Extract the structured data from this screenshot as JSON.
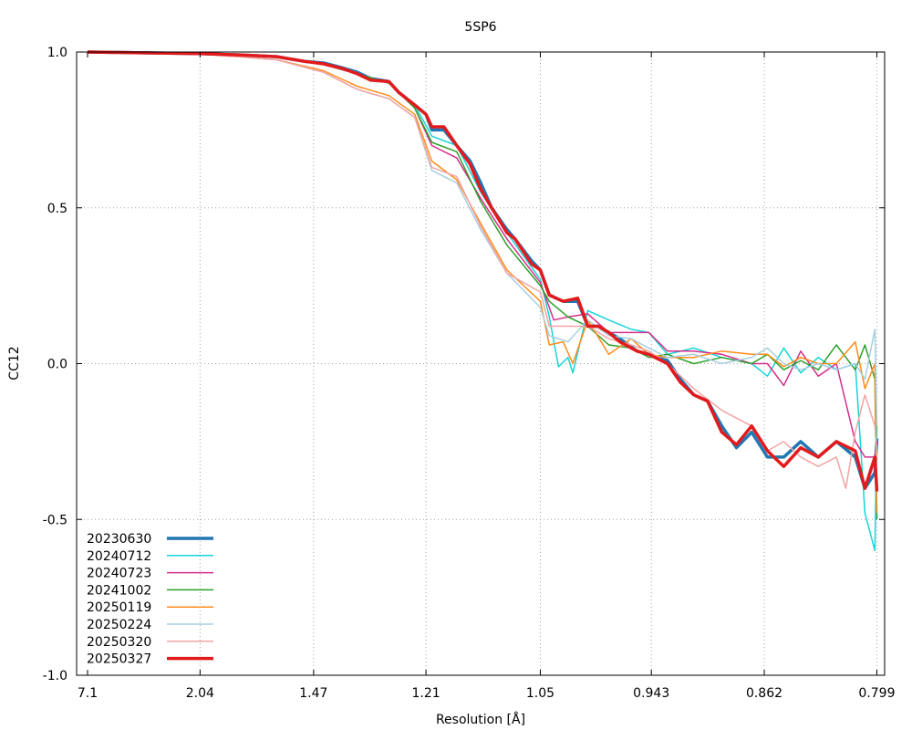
{
  "chart_data": {
    "type": "line",
    "title": "5SP6",
    "xlabel": "Resolution [Å]",
    "ylabel": "CC12",
    "x_scale": "1/d^2",
    "x_ticks": [
      "7.1",
      "2.04",
      "1.47",
      "1.21",
      "1.05",
      "0.943",
      "0.862",
      "0.799"
    ],
    "y_ticks": [
      "1.0",
      "0.5",
      "0.0",
      "-0.5",
      "-1.0"
    ],
    "ylim": [
      -1.0,
      1.0
    ],
    "grid": true,
    "legend_position": "bottom-left",
    "series": [
      {
        "name": "20230630",
        "color": "#1f77b4",
        "width": 3.5,
        "points": [
          [
            7.1,
            1.0
          ],
          [
            3.0,
            0.998
          ],
          [
            2.04,
            0.995
          ],
          [
            1.75,
            0.99
          ],
          [
            1.6,
            0.985
          ],
          [
            1.5,
            0.97
          ],
          [
            1.44,
            0.965
          ],
          [
            1.39,
            0.95
          ],
          [
            1.35,
            0.935
          ],
          [
            1.32,
            0.915
          ],
          [
            1.28,
            0.905
          ],
          [
            1.26,
            0.87
          ],
          [
            1.23,
            0.83
          ],
          [
            1.21,
            0.8
          ],
          [
            1.2,
            0.75
          ],
          [
            1.18,
            0.75
          ],
          [
            1.16,
            0.7
          ],
          [
            1.14,
            0.65
          ],
          [
            1.125,
            0.58
          ],
          [
            1.11,
            0.5
          ],
          [
            1.09,
            0.43
          ],
          [
            1.08,
            0.4
          ],
          [
            1.06,
            0.33
          ],
          [
            1.05,
            0.3
          ],
          [
            1.04,
            0.22
          ],
          [
            1.025,
            0.2
          ],
          [
            1.01,
            0.2
          ],
          [
            1.0,
            0.12
          ],
          [
            0.99,
            0.12
          ],
          [
            0.98,
            0.1
          ],
          [
            0.97,
            0.08
          ],
          [
            0.955,
            0.04
          ],
          [
            0.945,
            0.03
          ],
          [
            0.94,
            0.02
          ],
          [
            0.93,
            0.01
          ],
          [
            0.92,
            -0.05
          ],
          [
            0.91,
            -0.1
          ],
          [
            0.9,
            -0.12
          ],
          [
            0.89,
            -0.2
          ],
          [
            0.88,
            -0.27
          ],
          [
            0.87,
            -0.22
          ],
          [
            0.86,
            -0.3
          ],
          [
            0.85,
            -0.3
          ],
          [
            0.84,
            -0.25
          ],
          [
            0.83,
            -0.3
          ],
          [
            0.82,
            -0.25
          ],
          [
            0.81,
            -0.3
          ],
          [
            0.805,
            -0.4
          ],
          [
            0.8,
            -0.35
          ],
          [
            0.799,
            -0.24
          ]
        ]
      },
      {
        "name": "20240712",
        "color": "#17d4d8",
        "width": 1.5,
        "points": [
          [
            7.1,
            1.0
          ],
          [
            2.04,
            0.995
          ],
          [
            1.6,
            0.985
          ],
          [
            1.44,
            0.96
          ],
          [
            1.35,
            0.93
          ],
          [
            1.28,
            0.9
          ],
          [
            1.23,
            0.83
          ],
          [
            1.2,
            0.73
          ],
          [
            1.16,
            0.7
          ],
          [
            1.125,
            0.55
          ],
          [
            1.09,
            0.42
          ],
          [
            1.05,
            0.27
          ],
          [
            1.04,
            0.15
          ],
          [
            1.03,
            -0.01
          ],
          [
            1.02,
            0.02
          ],
          [
            1.015,
            -0.03
          ],
          [
            1.0,
            0.17
          ],
          [
            0.98,
            0.14
          ],
          [
            0.96,
            0.11
          ],
          [
            0.945,
            0.1
          ],
          [
            0.93,
            0.03
          ],
          [
            0.91,
            0.05
          ],
          [
            0.89,
            0.02
          ],
          [
            0.87,
            0.0
          ],
          [
            0.86,
            -0.04
          ],
          [
            0.85,
            0.05
          ],
          [
            0.84,
            -0.03
          ],
          [
            0.83,
            0.02
          ],
          [
            0.82,
            -0.02
          ],
          [
            0.81,
            0.0
          ],
          [
            0.805,
            -0.48
          ],
          [
            0.8,
            -0.6
          ],
          [
            0.799,
            -0.2
          ]
        ]
      },
      {
        "name": "20240723",
        "color": "#d62c8c",
        "width": 1.5,
        "points": [
          [
            7.1,
            1.0
          ],
          [
            2.04,
            0.995
          ],
          [
            1.6,
            0.985
          ],
          [
            1.44,
            0.96
          ],
          [
            1.35,
            0.93
          ],
          [
            1.28,
            0.9
          ],
          [
            1.23,
            0.82
          ],
          [
            1.2,
            0.7
          ],
          [
            1.16,
            0.66
          ],
          [
            1.125,
            0.53
          ],
          [
            1.09,
            0.4
          ],
          [
            1.05,
            0.26
          ],
          [
            1.035,
            0.14
          ],
          [
            1.02,
            0.15
          ],
          [
            1.0,
            0.16
          ],
          [
            0.98,
            0.1
          ],
          [
            0.96,
            0.1
          ],
          [
            0.945,
            0.1
          ],
          [
            0.93,
            0.04
          ],
          [
            0.91,
            0.04
          ],
          [
            0.89,
            0.03
          ],
          [
            0.87,
            0.0
          ],
          [
            0.86,
            0.0
          ],
          [
            0.85,
            -0.07
          ],
          [
            0.84,
            0.04
          ],
          [
            0.83,
            -0.04
          ],
          [
            0.82,
            0.0
          ],
          [
            0.81,
            -0.25
          ],
          [
            0.805,
            -0.3
          ],
          [
            0.8,
            -0.3
          ],
          [
            0.799,
            -0.25
          ]
        ]
      },
      {
        "name": "20241002",
        "color": "#2ca02c",
        "width": 1.5,
        "points": [
          [
            7.1,
            1.0
          ],
          [
            2.04,
            0.995
          ],
          [
            1.6,
            0.985
          ],
          [
            1.44,
            0.96
          ],
          [
            1.35,
            0.93
          ],
          [
            1.28,
            0.9
          ],
          [
            1.23,
            0.82
          ],
          [
            1.2,
            0.71
          ],
          [
            1.16,
            0.68
          ],
          [
            1.125,
            0.52
          ],
          [
            1.09,
            0.38
          ],
          [
            1.05,
            0.25
          ],
          [
            1.04,
            0.2
          ],
          [
            1.02,
            0.15
          ],
          [
            1.0,
            0.12
          ],
          [
            0.98,
            0.06
          ],
          [
            0.96,
            0.05
          ],
          [
            0.945,
            0.02
          ],
          [
            0.93,
            0.03
          ],
          [
            0.91,
            0.0
          ],
          [
            0.89,
            0.02
          ],
          [
            0.87,
            0.0
          ],
          [
            0.86,
            0.03
          ],
          [
            0.85,
            -0.02
          ],
          [
            0.84,
            0.01
          ],
          [
            0.83,
            -0.02
          ],
          [
            0.82,
            0.06
          ],
          [
            0.81,
            -0.02
          ],
          [
            0.805,
            0.06
          ],
          [
            0.8,
            -0.05
          ],
          [
            0.799,
            -0.5
          ]
        ]
      },
      {
        "name": "20250119",
        "color": "#ff8c1a",
        "width": 1.5,
        "points": [
          [
            7.1,
            1.0
          ],
          [
            2.04,
            0.994
          ],
          [
            1.6,
            0.975
          ],
          [
            1.44,
            0.94
          ],
          [
            1.35,
            0.89
          ],
          [
            1.28,
            0.86
          ],
          [
            1.23,
            0.8
          ],
          [
            1.2,
            0.65
          ],
          [
            1.16,
            0.59
          ],
          [
            1.125,
            0.45
          ],
          [
            1.09,
            0.3
          ],
          [
            1.05,
            0.2
          ],
          [
            1.04,
            0.06
          ],
          [
            1.025,
            0.07
          ],
          [
            1.015,
            0.0
          ],
          [
            1.0,
            0.14
          ],
          [
            0.98,
            0.03
          ],
          [
            0.96,
            0.08
          ],
          [
            0.945,
            0.03
          ],
          [
            0.93,
            0.02
          ],
          [
            0.91,
            0.02
          ],
          [
            0.89,
            0.04
          ],
          [
            0.87,
            0.03
          ],
          [
            0.86,
            0.03
          ],
          [
            0.85,
            -0.01
          ],
          [
            0.84,
            0.02
          ],
          [
            0.83,
            0.0
          ],
          [
            0.82,
            0.0
          ],
          [
            0.81,
            0.07
          ],
          [
            0.805,
            -0.08
          ],
          [
            0.8,
            0.0
          ],
          [
            0.799,
            -0.48
          ]
        ]
      },
      {
        "name": "20250224",
        "color": "#a6cee3",
        "width": 1.5,
        "points": [
          [
            7.1,
            1.0
          ],
          [
            2.04,
            0.994
          ],
          [
            1.6,
            0.975
          ],
          [
            1.44,
            0.935
          ],
          [
            1.35,
            0.88
          ],
          [
            1.28,
            0.85
          ],
          [
            1.23,
            0.79
          ],
          [
            1.2,
            0.62
          ],
          [
            1.16,
            0.58
          ],
          [
            1.125,
            0.43
          ],
          [
            1.09,
            0.29
          ],
          [
            1.05,
            0.18
          ],
          [
            1.04,
            0.09
          ],
          [
            1.02,
            0.07
          ],
          [
            1.0,
            0.14
          ],
          [
            0.98,
            0.09
          ],
          [
            0.96,
            0.08
          ],
          [
            0.945,
            0.05
          ],
          [
            0.93,
            0.02
          ],
          [
            0.91,
            0.03
          ],
          [
            0.89,
            0.0
          ],
          [
            0.87,
            0.02
          ],
          [
            0.86,
            0.05
          ],
          [
            0.85,
            0.0
          ],
          [
            0.84,
            -0.02
          ],
          [
            0.83,
            0.0
          ],
          [
            0.82,
            -0.02
          ],
          [
            0.81,
            0.0
          ],
          [
            0.805,
            -0.05
          ],
          [
            0.8,
            0.11
          ],
          [
            0.799,
            -0.2
          ]
        ]
      },
      {
        "name": "20250320",
        "color": "#f4a3a3",
        "width": 1.5,
        "points": [
          [
            7.1,
            1.0
          ],
          [
            2.04,
            0.994
          ],
          [
            1.6,
            0.975
          ],
          [
            1.44,
            0.935
          ],
          [
            1.35,
            0.88
          ],
          [
            1.28,
            0.85
          ],
          [
            1.23,
            0.79
          ],
          [
            1.2,
            0.63
          ],
          [
            1.16,
            0.6
          ],
          [
            1.125,
            0.44
          ],
          [
            1.09,
            0.29
          ],
          [
            1.05,
            0.23
          ],
          [
            1.04,
            0.12
          ],
          [
            1.02,
            0.12
          ],
          [
            1.0,
            0.12
          ],
          [
            0.98,
            0.08
          ],
          [
            0.96,
            0.06
          ],
          [
            0.945,
            0.04
          ],
          [
            0.93,
            0.0
          ],
          [
            0.91,
            -0.08
          ],
          [
            0.89,
            -0.15
          ],
          [
            0.87,
            -0.2
          ],
          [
            0.86,
            -0.28
          ],
          [
            0.85,
            -0.25
          ],
          [
            0.84,
            -0.3
          ],
          [
            0.83,
            -0.33
          ],
          [
            0.82,
            -0.3
          ],
          [
            0.815,
            -0.4
          ],
          [
            0.81,
            -0.22
          ],
          [
            0.805,
            -0.1
          ],
          [
            0.8,
            -0.2
          ],
          [
            0.799,
            -0.3
          ]
        ]
      },
      {
        "name": "20250327",
        "color": "#e31a1c",
        "width": 3.5,
        "points": [
          [
            7.1,
            1.0
          ],
          [
            3.0,
            0.998
          ],
          [
            2.04,
            0.995
          ],
          [
            1.75,
            0.99
          ],
          [
            1.6,
            0.985
          ],
          [
            1.5,
            0.97
          ],
          [
            1.44,
            0.962
          ],
          [
            1.39,
            0.948
          ],
          [
            1.35,
            0.93
          ],
          [
            1.32,
            0.91
          ],
          [
            1.28,
            0.905
          ],
          [
            1.26,
            0.87
          ],
          [
            1.23,
            0.83
          ],
          [
            1.21,
            0.8
          ],
          [
            1.2,
            0.76
          ],
          [
            1.18,
            0.76
          ],
          [
            1.16,
            0.7
          ],
          [
            1.14,
            0.64
          ],
          [
            1.125,
            0.56
          ],
          [
            1.11,
            0.5
          ],
          [
            1.09,
            0.42
          ],
          [
            1.08,
            0.4
          ],
          [
            1.06,
            0.32
          ],
          [
            1.05,
            0.3
          ],
          [
            1.04,
            0.22
          ],
          [
            1.025,
            0.2
          ],
          [
            1.01,
            0.21
          ],
          [
            1.0,
            0.12
          ],
          [
            0.99,
            0.12
          ],
          [
            0.98,
            0.1
          ],
          [
            0.97,
            0.07
          ],
          [
            0.955,
            0.04
          ],
          [
            0.945,
            0.03
          ],
          [
            0.94,
            0.02
          ],
          [
            0.93,
            0.0
          ],
          [
            0.92,
            -0.06
          ],
          [
            0.91,
            -0.1
          ],
          [
            0.9,
            -0.12
          ],
          [
            0.89,
            -0.22
          ],
          [
            0.88,
            -0.26
          ],
          [
            0.87,
            -0.2
          ],
          [
            0.86,
            -0.28
          ],
          [
            0.85,
            -0.33
          ],
          [
            0.84,
            -0.27
          ],
          [
            0.83,
            -0.3
          ],
          [
            0.82,
            -0.25
          ],
          [
            0.81,
            -0.28
          ],
          [
            0.805,
            -0.4
          ],
          [
            0.8,
            -0.3
          ],
          [
            0.799,
            -0.41
          ]
        ]
      }
    ]
  }
}
